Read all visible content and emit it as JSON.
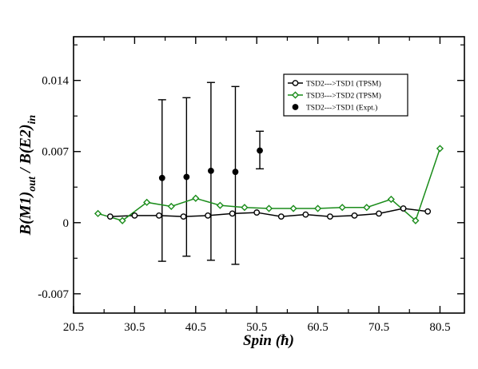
{
  "chart_data": {
    "type": "scatter",
    "xlabel": "Spin (ħ)",
    "ylabel_parts": {
      "main1": "B(M1)",
      "sub1": "out",
      "mid": " / B(E2)",
      "sub2": "in"
    },
    "xlim": [
      20.5,
      84.5
    ],
    "ylim": [
      -0.0089,
      0.0183
    ],
    "x_ticks": [
      20.5,
      30.5,
      40.5,
      50.5,
      60.5,
      70.5,
      80.5
    ],
    "x_tick_labels": [
      "20.5",
      "30.5",
      "40.5",
      "50.5",
      "60.5",
      "70.5",
      "80.5"
    ],
    "y_ticks": [
      -0.007,
      0,
      0.007,
      0.014
    ],
    "y_tick_labels": [
      "-0.007",
      "0",
      "0.007",
      "0.014"
    ],
    "grid": false,
    "legend_position": "top-right",
    "series": [
      {
        "name": "TSD2--->TSD1 (TPSM)",
        "color": "#000000",
        "marker": "circle-open",
        "line": true,
        "x": [
          26.5,
          30.5,
          34.5,
          38.5,
          42.5,
          46.5,
          50.5,
          54.5,
          58.5,
          62.5,
          66.5,
          70.5,
          74.5,
          78.5
        ],
        "y": [
          0.0006,
          0.0007,
          0.0007,
          0.0006,
          0.0007,
          0.0009,
          0.001,
          0.0006,
          0.0008,
          0.0006,
          0.0007,
          0.0009,
          0.0014,
          0.0011
        ]
      },
      {
        "name": "TSD3--->TSD2 (TPSM)",
        "color": "#1a8c1a",
        "marker": "diamond-open",
        "line": true,
        "x": [
          24.5,
          28.5,
          32.5,
          36.5,
          40.5,
          44.5,
          48.5,
          52.5,
          56.5,
          60.5,
          64.5,
          68.5,
          72.5,
          76.5,
          80.5
        ],
        "y": [
          0.0009,
          0.0002,
          0.002,
          0.0016,
          0.0024,
          0.0017,
          0.0015,
          0.0014,
          0.0014,
          0.0014,
          0.0015,
          0.0015,
          0.0023,
          0.0002,
          0.0073
        ]
      },
      {
        "name": "TSD2--->TSD1 (Expt.)",
        "color": "#000000",
        "marker": "circle-filled",
        "line": false,
        "x": [
          35,
          39,
          43,
          47,
          51
        ],
        "y": [
          0.0044,
          0.0045,
          0.0051,
          0.005,
          0.0071
        ],
        "err_low": [
          -0.0038,
          -0.0033,
          -0.0037,
          -0.0041,
          0.0053
        ],
        "err_high": [
          0.0121,
          0.0123,
          0.0138,
          0.0134,
          0.009
        ]
      }
    ]
  }
}
